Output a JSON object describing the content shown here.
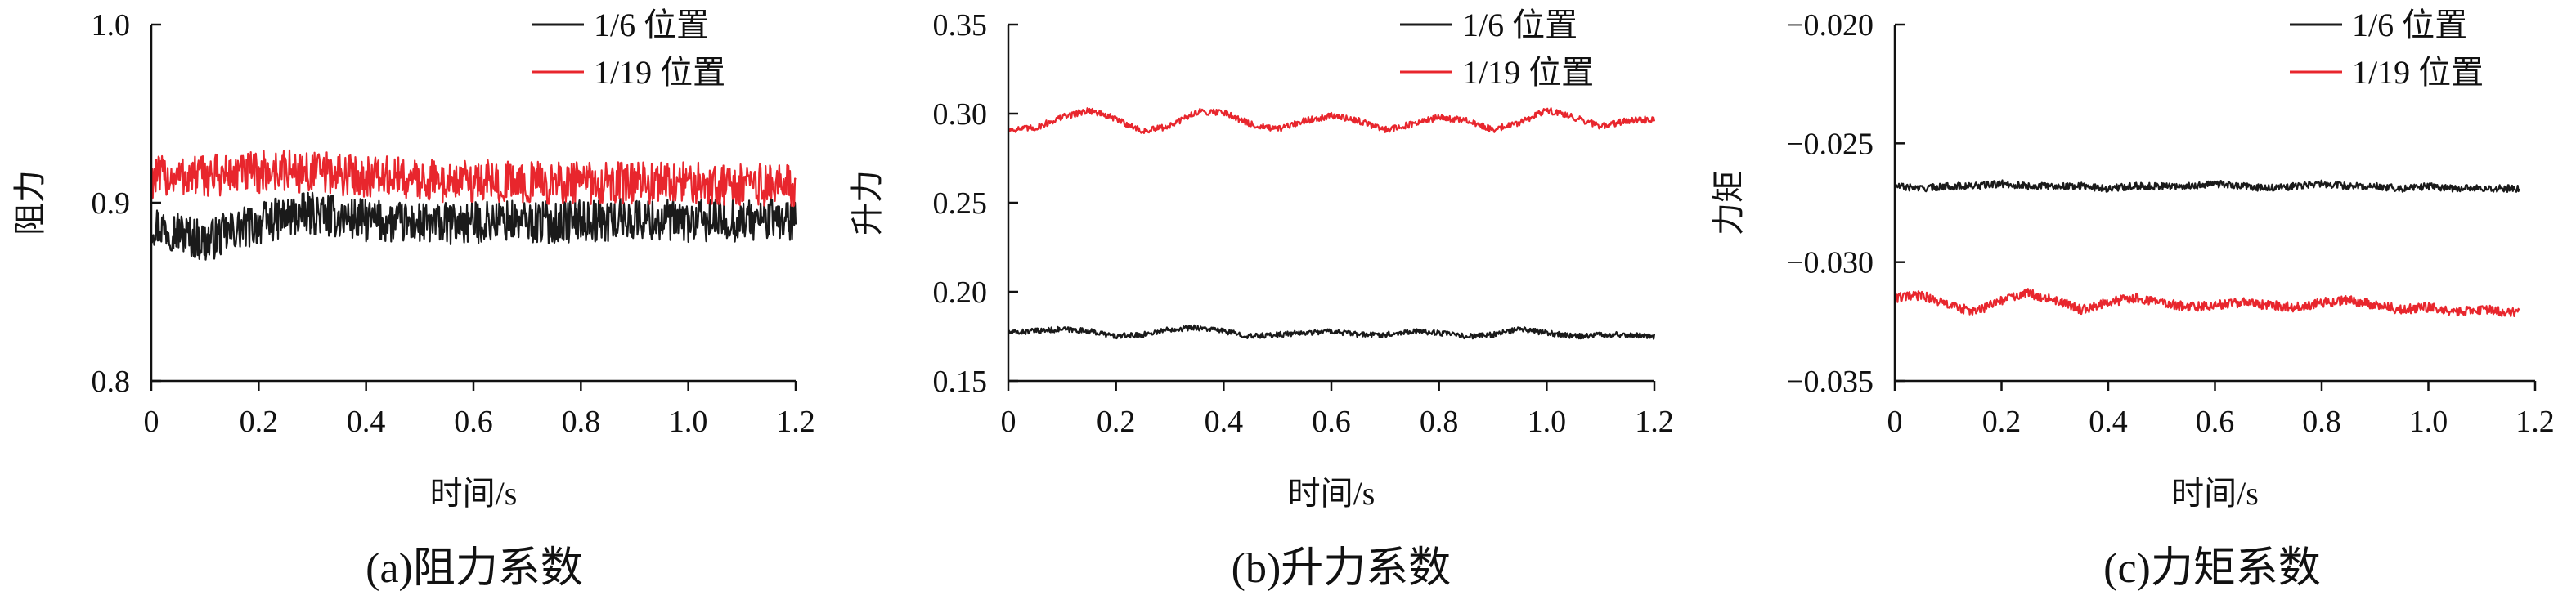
{
  "colors": {
    "series1": "#1a1a1a",
    "series2": "#e8262d",
    "axis": "#111111"
  },
  "chart_data": [
    {
      "type": "line",
      "caption": "(a)阻力系数",
      "xlabel": "时间/s",
      "ylabel": "阻力",
      "xlim": [
        0,
        1.2
      ],
      "ylim": [
        0.8,
        1.0
      ],
      "xticks": [
        0,
        0.2,
        0.4,
        0.6,
        0.8,
        1.0,
        1.2
      ],
      "xtick_labels": [
        "0",
        "0.2",
        "0.4",
        "0.6",
        "0.8",
        "1.0",
        "1.2"
      ],
      "yticks": [
        0.8,
        0.9,
        1.0
      ],
      "ytick_labels": [
        "0.8",
        "0.9",
        "1.0"
      ],
      "legend_position": "top-right",
      "series": [
        {
          "name": "1/6 位置",
          "color": "#1a1a1a",
          "x": [
            0,
            0.05,
            0.1,
            0.15,
            0.2,
            0.25,
            0.3,
            0.35,
            0.4,
            0.45,
            0.5,
            0.55,
            0.6,
            0.65,
            0.7,
            0.75,
            0.8,
            0.85,
            0.9,
            0.95,
            1.0,
            1.05,
            1.1,
            1.15,
            1.2
          ],
          "y": [
            0.888,
            0.884,
            0.878,
            0.884,
            0.888,
            0.892,
            0.894,
            0.892,
            0.89,
            0.889,
            0.888,
            0.888,
            0.889,
            0.89,
            0.889,
            0.889,
            0.89,
            0.89,
            0.891,
            0.89,
            0.889,
            0.89,
            0.89,
            0.891,
            0.89
          ],
          "noise_amplitude": 0.012
        },
        {
          "name": "1/19 位置",
          "color": "#e8262d",
          "x": [
            0,
            0.05,
            0.1,
            0.15,
            0.2,
            0.25,
            0.3,
            0.35,
            0.4,
            0.45,
            0.5,
            0.55,
            0.6,
            0.65,
            0.7,
            0.75,
            0.8,
            0.85,
            0.9,
            0.95,
            1.0,
            1.05,
            1.1,
            1.15,
            1.2
          ],
          "y": [
            0.914,
            0.915,
            0.915,
            0.916,
            0.917,
            0.918,
            0.917,
            0.916,
            0.915,
            0.914,
            0.913,
            0.912,
            0.912,
            0.912,
            0.911,
            0.911,
            0.911,
            0.911,
            0.911,
            0.911,
            0.911,
            0.911,
            0.91,
            0.91,
            0.91
          ],
          "noise_amplitude": 0.012
        }
      ]
    },
    {
      "type": "line",
      "caption": "(b)升力系数",
      "xlabel": "时间/s",
      "ylabel": "升力",
      "xlim": [
        0,
        1.2
      ],
      "ylim": [
        0.15,
        0.35
      ],
      "xticks": [
        0,
        0.2,
        0.4,
        0.6,
        0.8,
        1.0,
        1.2
      ],
      "xtick_labels": [
        "0",
        "0.2",
        "0.4",
        "0.6",
        "0.8",
        "1.0",
        "1.2"
      ],
      "yticks": [
        0.15,
        0.2,
        0.25,
        0.3,
        0.35
      ],
      "ytick_labels": [
        "0.15",
        "0.20",
        "0.25",
        "0.30",
        "0.35"
      ],
      "legend_position": "top-right",
      "series": [
        {
          "name": "1/6 位置",
          "color": "#1a1a1a",
          "x": [
            0,
            0.05,
            0.1,
            0.15,
            0.2,
            0.25,
            0.3,
            0.35,
            0.4,
            0.45,
            0.5,
            0.55,
            0.6,
            0.65,
            0.7,
            0.75,
            0.8,
            0.85,
            0.9,
            0.95,
            1.0,
            1.05,
            1.1,
            1.15,
            1.2
          ],
          "y": [
            0.177,
            0.178,
            0.179,
            0.178,
            0.175,
            0.176,
            0.179,
            0.18,
            0.178,
            0.175,
            0.176,
            0.177,
            0.178,
            0.176,
            0.176,
            0.178,
            0.177,
            0.175,
            0.176,
            0.179,
            0.177,
            0.175,
            0.176,
            0.176,
            0.175
          ],
          "noise_amplitude": 0.0015
        },
        {
          "name": "1/19 位置",
          "color": "#e8262d",
          "x": [
            0,
            0.05,
            0.1,
            0.15,
            0.2,
            0.25,
            0.3,
            0.35,
            0.4,
            0.45,
            0.5,
            0.55,
            0.6,
            0.65,
            0.7,
            0.75,
            0.8,
            0.85,
            0.9,
            0.95,
            1.0,
            1.05,
            1.1,
            1.15,
            1.2
          ],
          "y": [
            0.291,
            0.292,
            0.298,
            0.302,
            0.297,
            0.29,
            0.293,
            0.301,
            0.301,
            0.294,
            0.291,
            0.296,
            0.299,
            0.296,
            0.291,
            0.294,
            0.298,
            0.296,
            0.291,
            0.295,
            0.302,
            0.298,
            0.293,
            0.296,
            0.297
          ],
          "noise_amplitude": 0.0018
        }
      ]
    },
    {
      "type": "line",
      "caption": "(c)力矩系数",
      "xlabel": "时间/s",
      "ylabel": "力矩",
      "xlim": [
        0,
        1.2
      ],
      "ylim": [
        -0.035,
        -0.02
      ],
      "xticks": [
        0,
        0.2,
        0.4,
        0.6,
        0.8,
        1.0,
        1.2
      ],
      "xtick_labels": [
        "0",
        "0.2",
        "0.4",
        "0.6",
        "0.8",
        "1.0",
        "1.2"
      ],
      "yticks": [
        -0.035,
        -0.03,
        -0.025,
        -0.02
      ],
      "ytick_labels": [
        "−0.035",
        "−0.030",
        "−0.025",
        "−0.020"
      ],
      "legend_position": "top-right",
      "series": [
        {
          "name": "1/6 位置",
          "color": "#1a1a1a",
          "x": [
            0,
            0.05,
            0.1,
            0.15,
            0.2,
            0.25,
            0.3,
            0.35,
            0.4,
            0.45,
            0.5,
            0.55,
            0.6,
            0.65,
            0.7,
            0.75,
            0.8,
            0.85,
            0.9,
            0.95,
            1.0,
            1.05,
            1.1,
            1.15,
            1.17
          ],
          "y": [
            -0.0268,
            -0.0269,
            -0.0268,
            -0.0268,
            -0.0267,
            -0.0268,
            -0.0268,
            -0.0268,
            -0.0269,
            -0.0268,
            -0.0268,
            -0.0268,
            -0.0267,
            -0.0268,
            -0.0269,
            -0.0268,
            -0.0267,
            -0.0268,
            -0.0268,
            -0.0269,
            -0.0268,
            -0.0269,
            -0.0269,
            -0.0269,
            -0.0269
          ],
          "noise_amplitude": 0.00015
        },
        {
          "name": "1/19 位置",
          "color": "#e8262d",
          "x": [
            0,
            0.05,
            0.1,
            0.15,
            0.2,
            0.25,
            0.3,
            0.35,
            0.4,
            0.45,
            0.5,
            0.55,
            0.6,
            0.65,
            0.7,
            0.75,
            0.8,
            0.85,
            0.9,
            0.95,
            1.0,
            1.05,
            1.1,
            1.15,
            1.17
          ],
          "y": [
            -0.0315,
            -0.0314,
            -0.0318,
            -0.0321,
            -0.0316,
            -0.0313,
            -0.0316,
            -0.032,
            -0.0317,
            -0.0315,
            -0.0317,
            -0.0319,
            -0.0318,
            -0.0317,
            -0.0318,
            -0.0319,
            -0.0317,
            -0.0316,
            -0.0318,
            -0.032,
            -0.0319,
            -0.0321,
            -0.032,
            -0.0321,
            -0.0321
          ],
          "noise_amplitude": 0.0002
        }
      ]
    }
  ]
}
